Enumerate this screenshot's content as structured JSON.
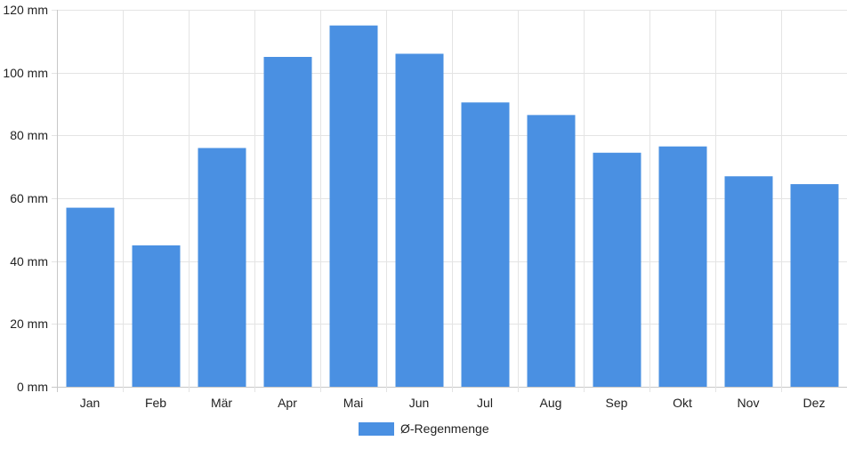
{
  "chart_data": {
    "type": "bar",
    "categories": [
      "Jan",
      "Feb",
      "Mär",
      "Apr",
      "Mai",
      "Jun",
      "Jul",
      "Aug",
      "Sep",
      "Okt",
      "Nov",
      "Dez"
    ],
    "series": [
      {
        "name": "Ø-Regenmenge",
        "values": [
          57,
          45,
          76,
          105,
          115,
          106,
          90.5,
          86.5,
          74.5,
          76.5,
          67,
          64.5
        ],
        "color": "#4a90e2"
      }
    ],
    "ylim": [
      0,
      120
    ],
    "yticks": [
      0,
      20,
      40,
      60,
      80,
      100,
      120
    ],
    "ytick_labels": [
      "0 mm",
      "20 mm",
      "40 mm",
      "60 mm",
      "80 mm",
      "100 mm",
      "120 mm"
    ],
    "grid": true,
    "legend_position": "bottom-center"
  }
}
